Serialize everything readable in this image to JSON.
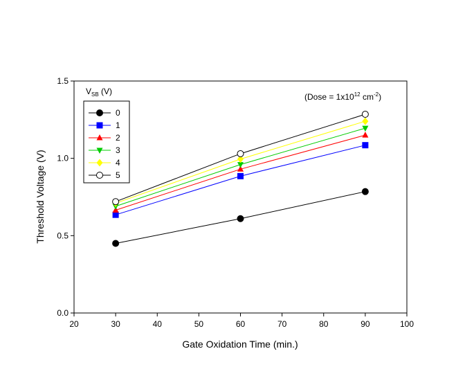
{
  "chart_data": {
    "type": "line",
    "title": "",
    "xlabel": "Gate Oxidation Time (min.)",
    "ylabel": "Threshold Voltage (V)",
    "xlim": [
      20,
      100
    ],
    "ylim": [
      0.0,
      1.5
    ],
    "xticks": [
      "20",
      "30",
      "40",
      "50",
      "60",
      "70",
      "80",
      "90",
      "100"
    ],
    "yticks": [
      "0.0",
      "0.5",
      "1.0",
      "1.5"
    ],
    "grid": false,
    "legend_placement": "top-left",
    "legend_title": {
      "main": "V",
      "sub": "SB",
      "suffix": " (V)"
    },
    "annotation": {
      "prefix": "(Dose = 1x10",
      "exp": "12",
      "mid": " cm",
      "exp2": "-2",
      "suffix": ")"
    },
    "x": [
      30,
      60,
      90
    ],
    "series": [
      {
        "name": "0",
        "values": [
          0.45,
          0.61,
          0.785
        ],
        "color": "#000000",
        "marker": "circle-filled"
      },
      {
        "name": "1",
        "values": [
          0.635,
          0.885,
          1.085
        ],
        "color": "#0000ff",
        "marker": "square"
      },
      {
        "name": "2",
        "values": [
          0.665,
          0.93,
          1.15
        ],
        "color": "#ff0000",
        "marker": "triangle-up"
      },
      {
        "name": "3",
        "values": [
          0.69,
          0.96,
          1.195
        ],
        "color": "#00cc00",
        "marker": "triangle-down"
      },
      {
        "name": "4",
        "values": [
          0.71,
          0.995,
          1.24
        ],
        "color": "#ffff00",
        "marker": "diamond"
      },
      {
        "name": "5",
        "values": [
          0.72,
          1.03,
          1.285
        ],
        "color": "#000000",
        "marker": "circle-open"
      }
    ]
  }
}
